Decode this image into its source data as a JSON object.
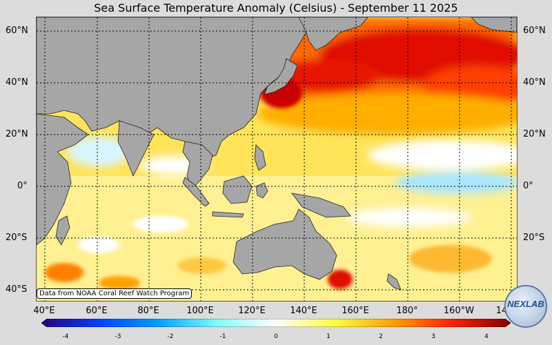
{
  "title": "Sea Surface Temperature Anomaly (Celsius) - September 11 2025",
  "lat_labels": [
    "60°N",
    "40°N",
    "20°N",
    "0°",
    "20°S",
    "40°S"
  ],
  "lon_labels": [
    "40°E",
    "60°E",
    "80°E",
    "100°E",
    "120°E",
    "140°E",
    "160°E",
    "180°",
    "160°W",
    "14"
  ],
  "credit": "Data from NOAA Coral Reef Watch Program",
  "colorbar": {
    "ticks": [
      "-4",
      "-3",
      "-2",
      "-1",
      "0",
      "1",
      "2",
      "3",
      "4"
    ],
    "colors": [
      "#2a0080",
      "#0040ff",
      "#00a0ff",
      "#80ffff",
      "#ffffff",
      "#ffff40",
      "#ffa000",
      "#ff2000",
      "#800000"
    ]
  },
  "logo": {
    "text": "NEXLAB"
  },
  "colors": {
    "land": "#a6a6a6",
    "warm_strong": "#d40000",
    "warm": "#ff8c00",
    "neutral_warm": "#ffe94d",
    "neutral": "#ffffff",
    "cool": "#a8e6ff"
  }
}
